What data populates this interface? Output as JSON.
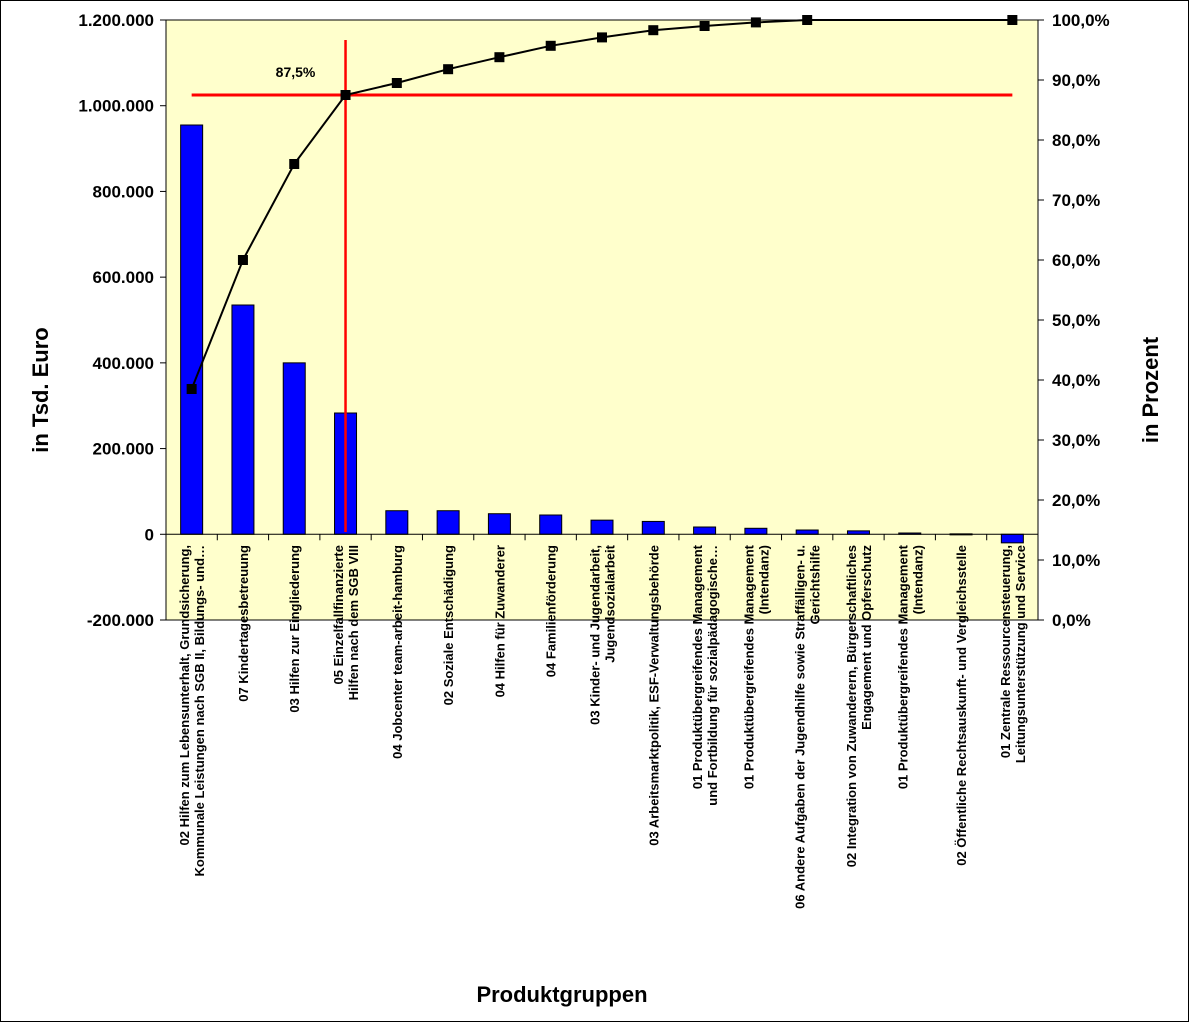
{
  "chart_data": {
    "type": "bar",
    "xlabel": "Produktgruppen",
    "ylabel": "in Tsd. Euro",
    "y2label": "in Prozent",
    "ylim": [
      -200000,
      1200000
    ],
    "y2lim": [
      0,
      100
    ],
    "yticks": [
      "-200.000",
      "0",
      "200.000",
      "400.000",
      "600.000",
      "800.000",
      "1.000.000",
      "1.200.000"
    ],
    "y2ticks": [
      "0,0%",
      "10,0%",
      "20,0%",
      "30,0%",
      "40,0%",
      "50,0%",
      "60,0%",
      "70,0%",
      "80,0%",
      "90,0%",
      "100,0%"
    ],
    "categories": [
      [
        "02 Hilfen zum Lebensunterhalt, Grundsicherung,",
        "Kommunale Leistungen nach SGB II, Bildungs- und…"
      ],
      [
        "07 Kindertagesbetreuung"
      ],
      [
        "03 Hilfen zur Eingliederung"
      ],
      [
        "05 Einzelfallfinanzierte",
        "Hilfen nach dem SGB VIII"
      ],
      [
        "04 Jobcenter team-arbeit-hamburg"
      ],
      [
        "02 Soziale Entschädigung"
      ],
      [
        "04 Hilfen für Zuwanderer"
      ],
      [
        "04 Familienförderung"
      ],
      [
        "03 Kinder- und Jugendarbeit,",
        "Jugendsozialarbeit"
      ],
      [
        "03 Arbeitsmarktpolitik, ESF-Verwaltungsbehörde"
      ],
      [
        "01 Produktübergreifendes Management",
        "und Fortbildung für sozialpädagogische…"
      ],
      [
        "01 Produktübergreifendes Management",
        "(Intendanz)"
      ],
      [
        "06 Andere Aufgaben der Jugendhilfe sowie Straffälligen- u.",
        "Gerichtshilfe"
      ],
      [
        "02 Integration von Zuwanderern, Bürgerschaftliches",
        "Engagement und Opferschutz"
      ],
      [
        "01 Produktübergreifendes Management",
        "(Intendanz)"
      ],
      [
        "02 Öffentliche Rechtsauskunft- und Vergleichsstelle"
      ],
      [
        "01 Zentrale Ressourcensteuerung,",
        "Leitungsunterstützung und Service"
      ]
    ],
    "series": [
      {
        "axis": "left",
        "mark": "bar",
        "color": "#0000ff",
        "values": [
          955000,
          535000,
          400000,
          283000,
          55000,
          55000,
          48000,
          45000,
          33000,
          30000,
          17000,
          14000,
          10000,
          8000,
          3000,
          1000,
          -20000
        ]
      },
      {
        "axis": "right",
        "mark": "line",
        "color": "#000000",
        "values": [
          38.5,
          60.0,
          76.0,
          87.5,
          89.5,
          91.8,
          93.8,
          95.7,
          97.1,
          98.3,
          99.0,
          99.6,
          100.0,
          100.3,
          100.4,
          100.4,
          100.0
        ]
      }
    ],
    "reference_lines": {
      "color": "#ff0000",
      "horizontal_percent": 87.5,
      "vertical_category_index": 3,
      "label": "87,5%"
    },
    "plot_background": "#ffffcc",
    "grid": false,
    "legend": "none"
  }
}
